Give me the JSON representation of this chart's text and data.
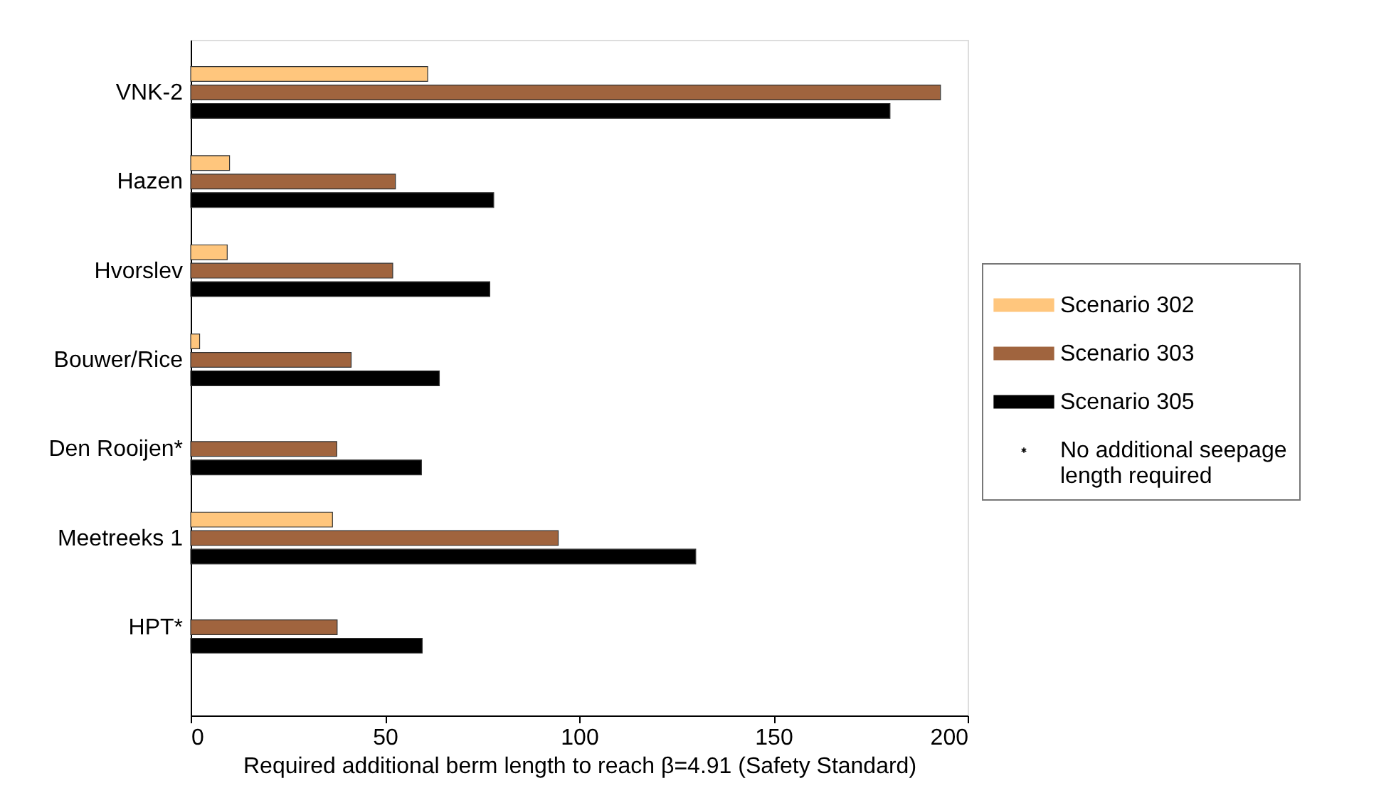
{
  "chart_data": {
    "type": "bar",
    "orientation": "horizontal",
    "xlabel": "Required additional berm length to reach β=4.91 (Safety Standard)",
    "categories": [
      "VNK-2",
      "Hazen",
      "Hvorslev",
      "Bouwer/Rice",
      "Den Rooijen*",
      "Meetreeks 1",
      "HPT*"
    ],
    "series": [
      {
        "name": "Scenario 302",
        "color": "#ffc67d",
        "values": [
          61,
          10,
          9.4,
          2.3,
          null,
          36.5,
          null
        ]
      },
      {
        "name": "Scenario 303",
        "color": "#a0643e",
        "values": [
          193,
          52.7,
          52,
          41.3,
          37.6,
          94.6,
          37.7
        ]
      },
      {
        "name": "Scenario 305",
        "color": "#000000",
        "values": [
          180,
          78,
          77,
          64,
          59.4,
          130,
          59.6
        ]
      },
      {
        "name": "No additional seepage length required",
        "type": "scatter",
        "marker": "star",
        "color": "#000000",
        "values": [
          null,
          null,
          null,
          null,
          null,
          null,
          null
        ]
      }
    ],
    "xlim": [
      0,
      200
    ],
    "xticks": [
      0,
      50,
      100,
      150,
      200
    ],
    "grid": false,
    "legend": "right"
  }
}
